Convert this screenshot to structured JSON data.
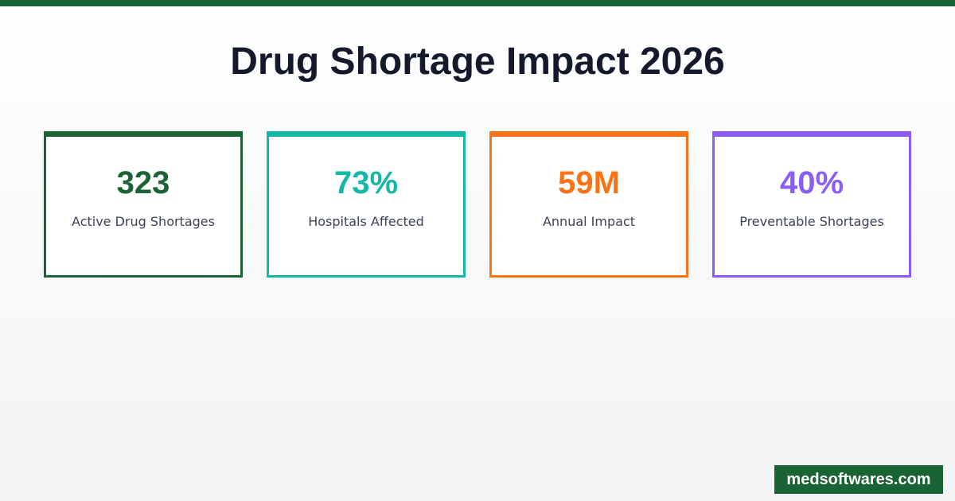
{
  "title": "Drug Shortage Impact 2026",
  "colors": {
    "brand": "#1a6334"
  },
  "stats": [
    {
      "value": "323",
      "label": "Active Drug Shortages",
      "color": "#1a6334"
    },
    {
      "value": "73%",
      "label": "Hospitals Affected",
      "color": "#14b8a6"
    },
    {
      "value": "59M",
      "label": "Annual Impact",
      "color": "#f97316"
    },
    {
      "value": "40%",
      "label": "Preventable Shortages",
      "color": "#8b5cf6"
    }
  ],
  "watermark": "medsoftwares.com"
}
